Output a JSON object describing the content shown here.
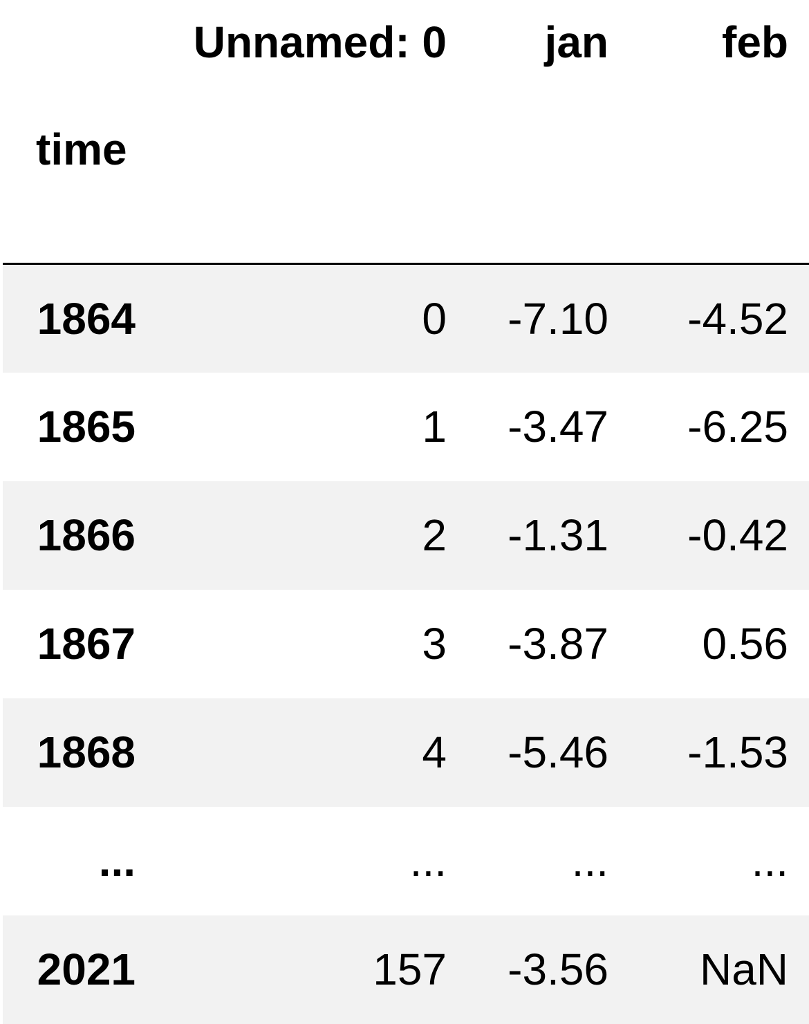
{
  "table": {
    "columns": [
      "Unnamed: 0",
      "jan",
      "feb"
    ],
    "index_name": "time",
    "rows": [
      {
        "index": "1864",
        "values": [
          "0",
          "-7.10",
          "-4.52"
        ]
      },
      {
        "index": "1865",
        "values": [
          "1",
          "-3.47",
          "-6.25"
        ]
      },
      {
        "index": "1866",
        "values": [
          "2",
          "-1.31",
          "-0.42"
        ]
      },
      {
        "index": "1867",
        "values": [
          "3",
          "-3.87",
          "0.56"
        ]
      },
      {
        "index": "1868",
        "values": [
          "4",
          "-5.46",
          "-1.53"
        ]
      },
      {
        "index": "...",
        "values": [
          "...",
          "...",
          "..."
        ]
      },
      {
        "index": "2021",
        "values": [
          "157",
          "-3.56",
          "NaN"
        ]
      }
    ]
  },
  "colors": {
    "stripe": "#f2f2f2",
    "background": "#ffffff",
    "text": "#000000"
  }
}
